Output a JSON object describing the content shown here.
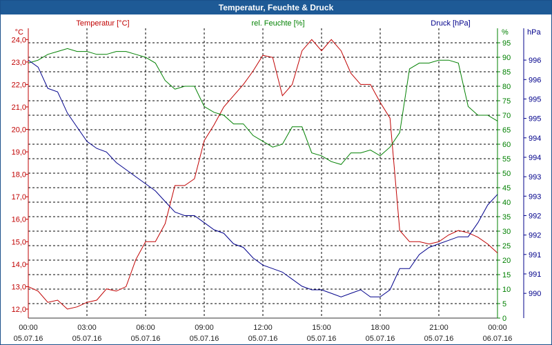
{
  "title": "Temperatur, Feuchte & Druck",
  "colors": {
    "temperature": "#c00000",
    "humidity": "#008000",
    "pressure": "#00008b",
    "axis": "#333333",
    "title_bg": "#1e5a96"
  },
  "chart_data": {
    "type": "line",
    "title": "Temperatur, Feuchte & Druck",
    "grid": true,
    "x_axis": {
      "ticks": [
        {
          "time": "00:00",
          "date": "05.07.16"
        },
        {
          "time": "03:00",
          "date": "05.07.16"
        },
        {
          "time": "06:00",
          "date": "05.07.16"
        },
        {
          "time": "09:00",
          "date": "05.07.16"
        },
        {
          "time": "12:00",
          "date": "05.07.16"
        },
        {
          "time": "15:00",
          "date": "05.07.16"
        },
        {
          "time": "18:00",
          "date": "05.07.16"
        },
        {
          "time": "21:00",
          "date": "05.07.16"
        },
        {
          "time": "00:00",
          "date": "06.07.16"
        }
      ],
      "range_hours": [
        0,
        24
      ]
    },
    "left_axis": {
      "unit": "°C",
      "range": [
        11.6,
        24.5
      ],
      "ticks": [
        "12,0",
        "13,0",
        "14,0",
        "15,0",
        "16,0",
        "17,0",
        "18,0",
        "19,0",
        "20,0",
        "21,0",
        "22,0",
        "23,0",
        "24,0"
      ]
    },
    "right_axis_1": {
      "unit": "%",
      "range": [
        0,
        100
      ],
      "ticks": [
        "0",
        "5",
        "10",
        "15",
        "20",
        "25",
        "30",
        "35",
        "40",
        "45",
        "50",
        "55",
        "60",
        "65",
        "70",
        "75",
        "80",
        "85",
        "90",
        "95"
      ]
    },
    "right_axis_2": {
      "unit": "hPa",
      "range": [
        989.2,
        997.4
      ],
      "ticks": [
        "990",
        "991",
        "991",
        "992",
        "992",
        "993",
        "993",
        "994",
        "994",
        "995",
        "995",
        "996",
        "996"
      ]
    },
    "series": [
      {
        "name": "Temperatur [°C]",
        "axis": "left",
        "x": [
          0,
          0.5,
          1.0,
          1.5,
          2.0,
          2.5,
          3.0,
          3.5,
          4.0,
          4.5,
          5.0,
          5.5,
          6.0,
          6.5,
          7.0,
          7.5,
          8.0,
          8.5,
          9.0,
          9.5,
          10.0,
          10.5,
          11.0,
          11.5,
          12.0,
          12.5,
          13.0,
          13.5,
          14.0,
          14.5,
          15.0,
          15.5,
          16.0,
          16.5,
          17.0,
          17.5,
          18.0,
          18.5,
          19.0,
          19.5,
          20.0,
          20.5,
          21.0,
          21.5,
          22.0,
          22.5,
          23.0,
          23.5,
          24.0
        ],
        "values": [
          13.0,
          12.8,
          12.3,
          12.4,
          12.0,
          12.1,
          12.3,
          12.4,
          12.9,
          12.8,
          13.0,
          14.2,
          15.0,
          15.0,
          15.8,
          17.5,
          17.5,
          17.8,
          19.5,
          20.2,
          21.0,
          21.5,
          22.0,
          22.6,
          23.3,
          23.2,
          21.5,
          22.0,
          23.5,
          24.0,
          23.5,
          24.0,
          23.5,
          22.5,
          22.0,
          22.0,
          21.2,
          20.5,
          15.5,
          15.0,
          15.0,
          14.9,
          15.0,
          15.3,
          15.5,
          15.4,
          15.2,
          14.9,
          14.5
        ]
      },
      {
        "name": "rel. Feuchte [%]",
        "axis": "right1",
        "x": [
          0,
          0.5,
          1.0,
          1.5,
          2.0,
          2.5,
          3.0,
          3.5,
          4.0,
          4.5,
          5.0,
          5.5,
          6.0,
          6.5,
          7.0,
          7.5,
          8.0,
          8.5,
          9.0,
          9.5,
          10.0,
          10.5,
          11.0,
          11.5,
          12.0,
          12.5,
          13.0,
          13.5,
          14.0,
          14.5,
          15.0,
          15.5,
          16.0,
          16.5,
          17.0,
          17.5,
          18.0,
          18.5,
          19.0,
          19.5,
          20.0,
          20.5,
          21.0,
          21.5,
          22.0,
          22.5,
          23.0,
          23.5,
          24.0
        ],
        "values": [
          88,
          89,
          91,
          92,
          93,
          92,
          92,
          91,
          91,
          92,
          92,
          91,
          90,
          88,
          82,
          79,
          80,
          80,
          73,
          71,
          70,
          67,
          67,
          63,
          61,
          59,
          60,
          66,
          66,
          57,
          56,
          54,
          53,
          57,
          57,
          58,
          56,
          59,
          64,
          86,
          88,
          88,
          89,
          89,
          88,
          73,
          70,
          70,
          68
        ]
      },
      {
        "name": "Druck [hPa]",
        "axis": "right2",
        "x": [
          0,
          0.5,
          1.0,
          1.5,
          2.0,
          2.5,
          3.0,
          3.5,
          4.0,
          4.5,
          5.0,
          5.5,
          6.0,
          6.5,
          7.0,
          7.5,
          8.0,
          8.5,
          9.0,
          9.5,
          10.0,
          10.5,
          11.0,
          11.5,
          12.0,
          12.5,
          13.0,
          13.5,
          14.0,
          14.5,
          15.0,
          15.5,
          16.0,
          16.5,
          17.0,
          17.5,
          18.0,
          18.5,
          19.0,
          19.5,
          20.0,
          20.5,
          21.0,
          21.5,
          22.0,
          22.5,
          23.0,
          23.5,
          24.0
        ],
        "values": [
          996.5,
          996.3,
          995.7,
          995.6,
          995.0,
          994.6,
          994.2,
          994.0,
          993.9,
          993.6,
          993.4,
          993.2,
          993.0,
          992.8,
          992.5,
          992.2,
          992.1,
          992.1,
          991.9,
          991.7,
          991.6,
          991.3,
          991.2,
          990.9,
          990.7,
          990.6,
          990.5,
          990.3,
          990.1,
          990.0,
          990.0,
          989.9,
          989.8,
          989.9,
          990.0,
          989.8,
          989.8,
          990.0,
          990.6,
          990.6,
          991.0,
          991.2,
          991.3,
          991.4,
          991.5,
          991.5,
          991.9,
          992.4,
          992.7
        ]
      }
    ]
  }
}
